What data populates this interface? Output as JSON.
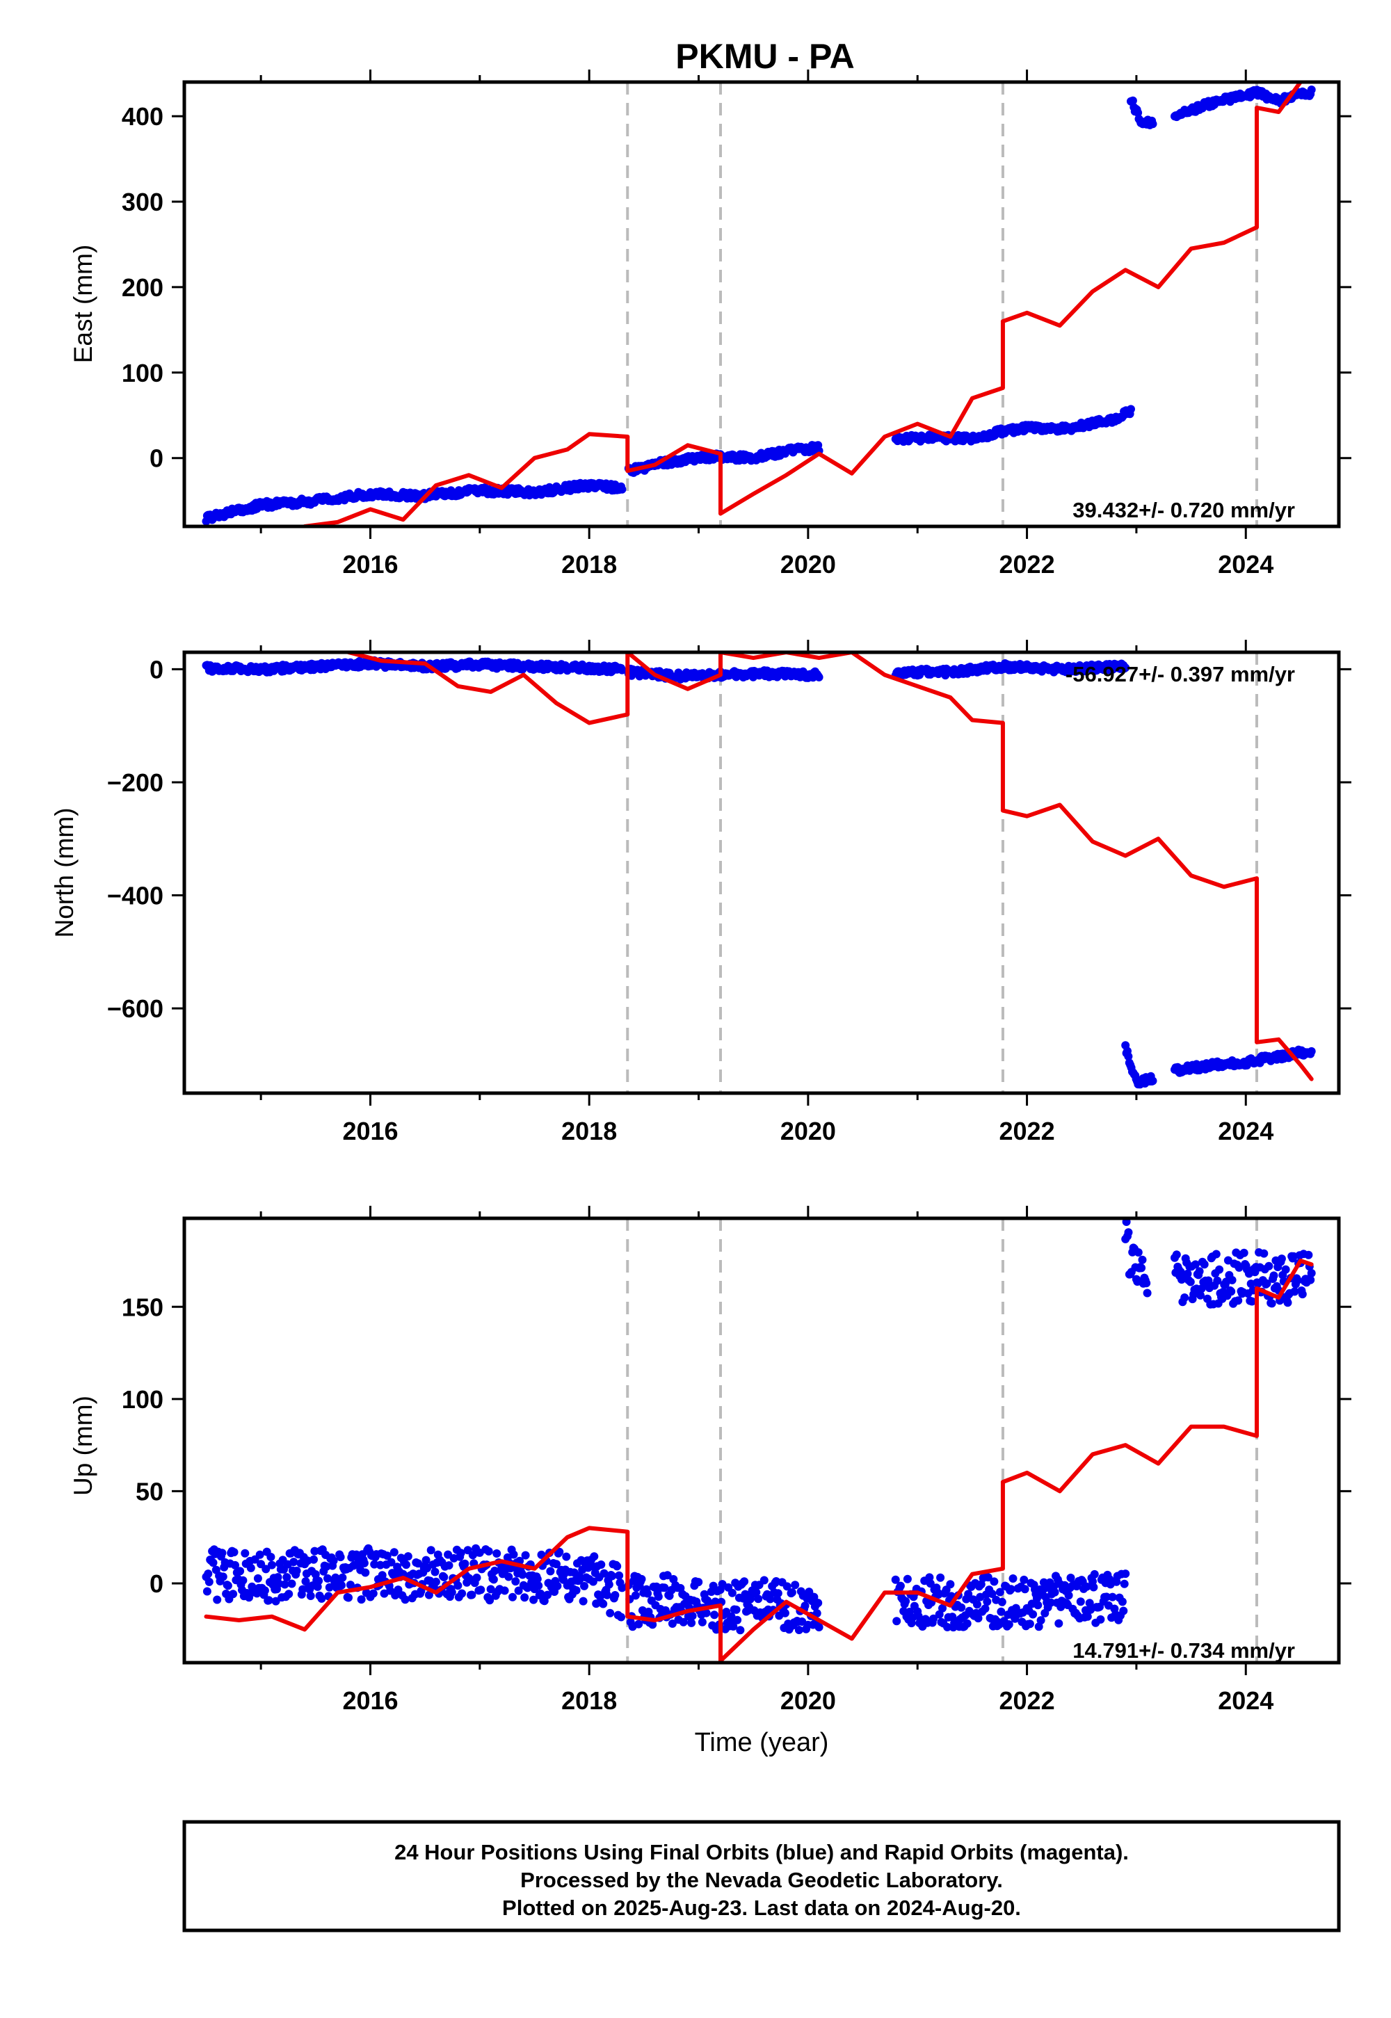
{
  "title": "PKMU - PA",
  "xlabel": "Time (year)",
  "footer": [
    "24 Hour Positions Using Final Orbits (blue) and Rapid Orbits (magenta).",
    "Processed by the Nevada Geodetic Laboratory.",
    "Plotted on 2025-Aug-23. Last data on 2024-Aug-20."
  ],
  "colors": {
    "data": "#0000ee",
    "model": "#ee0000",
    "steps": "#bbbbbb",
    "axes": "#000000"
  },
  "chart_data": [
    {
      "type": "scatter",
      "component": "East",
      "ylabel": "East (mm)",
      "xlim": [
        2014.3,
        2024.85
      ],
      "ylim": [
        -80,
        440
      ],
      "xticks": [
        2016,
        2018,
        2020,
        2022,
        2024
      ],
      "yticks": [
        0,
        100,
        200,
        300,
        400
      ],
      "rate_text": "39.432+/- 0.720 mm/yr",
      "steps": [
        2018.35,
        2019.2,
        2021.78,
        2024.1
      ],
      "data_segments": [
        {
          "x": [
            2014.5,
            2015.0,
            2015.5,
            2016.0,
            2016.5,
            2017.0,
            2017.5,
            2018.0,
            2018.3
          ],
          "y": [
            -70,
            -55,
            -50,
            -42,
            -44,
            -38,
            -40,
            -32,
            -35
          ]
        },
        {
          "x": [
            2018.36,
            2018.7,
            2019.0,
            2019.2,
            2019.5,
            2019.8,
            2020.1
          ],
          "y": [
            -15,
            -5,
            0,
            2,
            0,
            8,
            12
          ]
        },
        {
          "x": [
            2020.8,
            2021.2,
            2021.5,
            2021.78,
            2022.0,
            2022.4,
            2022.8,
            2022.95
          ],
          "y": [
            22,
            24,
            22,
            32,
            35,
            35,
            45,
            55
          ]
        },
        {
          "x": [
            2022.95,
            2023.05,
            2023.15
          ],
          "y": [
            420,
            390,
            395
          ]
        },
        {
          "x": [
            2023.35,
            2023.6,
            2023.9,
            2024.1,
            2024.3,
            2024.6
          ],
          "y": [
            400,
            412,
            422,
            428,
            418,
            428
          ]
        }
      ],
      "model_segments": [
        {
          "x": [
            2015.4,
            2015.7,
            2016.0,
            2016.3,
            2016.6,
            2016.9,
            2017.2,
            2017.5,
            2017.8,
            2018.0,
            2018.35
          ],
          "y": [
            -80,
            -75,
            -60,
            -72,
            -32,
            -20,
            -35,
            0,
            10,
            28,
            25
          ]
        },
        {
          "x": [
            2018.35,
            2018.6,
            2018.9,
            2019.2
          ],
          "y": [
            -15,
            -8,
            15,
            5
          ]
        },
        {
          "x": [
            2019.2,
            2019.5,
            2019.8,
            2020.1,
            2020.4,
            2020.7,
            2021.0,
            2021.3,
            2021.5,
            2021.78
          ],
          "y": [
            -65,
            -42,
            -20,
            5,
            -18,
            25,
            40,
            25,
            70,
            82
          ]
        },
        {
          "x": [
            2021.78,
            2022.0,
            2022.3,
            2022.6,
            2022.9,
            2023.2,
            2023.5,
            2023.8,
            2024.1
          ],
          "y": [
            160,
            170,
            155,
            195,
            220,
            200,
            245,
            252,
            270
          ]
        },
        {
          "x": [
            2024.1,
            2024.3,
            2024.5
          ],
          "y": [
            410,
            405,
            440
          ]
        }
      ]
    },
    {
      "type": "scatter",
      "component": "North",
      "ylabel": "North (mm)",
      "xlim": [
        2014.3,
        2024.85
      ],
      "ylim": [
        -750,
        30
      ],
      "xticks": [
        2016,
        2018,
        2020,
        2022,
        2024
      ],
      "yticks": [
        0,
        -200,
        -400,
        -600
      ],
      "rate_text": "-56.927+/- 0.397 mm/yr",
      "steps": [
        2018.35,
        2019.2,
        2021.78,
        2024.1
      ],
      "data_segments": [
        {
          "x": [
            2014.5,
            2015.0,
            2015.5,
            2016.0,
            2016.5,
            2017.0,
            2017.5,
            2018.0,
            2018.3
          ],
          "y": [
            2,
            0,
            5,
            10,
            5,
            8,
            5,
            2,
            0
          ]
        },
        {
          "x": [
            2018.36,
            2018.8,
            2019.2,
            2019.6,
            2020.1
          ],
          "y": [
            -5,
            -12,
            -10,
            -8,
            -10
          ]
        },
        {
          "x": [
            2020.8,
            2021.3,
            2021.78,
            2022.3,
            2022.9
          ],
          "y": [
            -5,
            -5,
            5,
            0,
            5
          ]
        },
        {
          "x": [
            2022.9,
            2023.0,
            2023.15
          ],
          "y": [
            -670,
            -730,
            -725
          ]
        },
        {
          "x": [
            2023.35,
            2023.7,
            2024.0,
            2024.3,
            2024.6
          ],
          "y": [
            -710,
            -700,
            -695,
            -685,
            -675
          ]
        }
      ],
      "model_segments": [
        {
          "x": [
            2015.8,
            2016.1,
            2016.5,
            2016.8,
            2017.1,
            2017.4,
            2017.7,
            2018.0,
            2018.35
          ],
          "y": [
            30,
            15,
            10,
            -30,
            -40,
            -10,
            -60,
            -95,
            -80
          ]
        },
        {
          "x": [
            2018.35,
            2018.6,
            2018.9,
            2019.2
          ],
          "y": [
            30,
            -10,
            -35,
            -10
          ]
        },
        {
          "x": [
            2019.2,
            2019.5,
            2019.8,
            2020.1,
            2020.4,
            2020.7,
            2021.0,
            2021.3,
            2021.5,
            2021.78
          ],
          "y": [
            30,
            20,
            30,
            20,
            30,
            -10,
            -30,
            -50,
            -90,
            -95
          ]
        },
        {
          "x": [
            2021.78,
            2022.0,
            2022.3,
            2022.6,
            2022.9,
            2023.2,
            2023.5,
            2023.8,
            2024.1
          ],
          "y": [
            -250,
            -260,
            -240,
            -305,
            -330,
            -300,
            -365,
            -385,
            -370
          ]
        },
        {
          "x": [
            2024.1,
            2024.3,
            2024.5,
            2024.6
          ],
          "y": [
            -660,
            -655,
            -700,
            -725
          ]
        }
      ]
    },
    {
      "type": "scatter",
      "component": "Up",
      "ylabel": "Up (mm)",
      "xlim": [
        2014.3,
        2024.85
      ],
      "ylim": [
        -43,
        198
      ],
      "xticks": [
        2016,
        2018,
        2020,
        2022,
        2024
      ],
      "yticks": [
        0,
        50,
        100,
        150
      ],
      "rate_text": "14.791+/- 0.734 mm/yr",
      "steps": [
        2018.35,
        2019.2,
        2021.78,
        2024.1
      ],
      "data_segments": [
        {
          "x": [
            2014.5,
            2015.0,
            2015.5,
            2016.0,
            2016.5,
            2017.0,
            2017.5,
            2018.0,
            2018.3
          ],
          "y": [
            5,
            3,
            5,
            5,
            4,
            5,
            4,
            2,
            -5
          ]
        },
        {
          "x": [
            2018.36,
            2018.8,
            2019.2,
            2019.6,
            2020.1
          ],
          "y": [
            -10,
            -8,
            -12,
            -12,
            -12
          ]
        },
        {
          "x": [
            2020.8,
            2021.3,
            2021.78,
            2022.3,
            2022.9
          ],
          "y": [
            -10,
            -10,
            -10,
            -10,
            -8
          ]
        },
        {
          "x": [
            2022.9,
            2022.95,
            2023.1
          ],
          "y": [
            185,
            175,
            170
          ]
        },
        {
          "x": [
            2023.35,
            2023.7,
            2024.0,
            2024.3,
            2024.6
          ],
          "y": [
            167,
            165,
            166,
            165,
            168
          ]
        }
      ],
      "model_segments": [
        {
          "x": [
            2014.5,
            2014.8,
            2015.1,
            2015.4,
            2015.7,
            2016.0,
            2016.3,
            2016.6,
            2016.9,
            2017.2,
            2017.5,
            2017.8,
            2018.0,
            2018.35
          ],
          "y": [
            -18,
            -20,
            -18,
            -25,
            -5,
            -2,
            3,
            -5,
            8,
            12,
            8,
            25,
            30,
            28
          ]
        },
        {
          "x": [
            2018.35,
            2018.6,
            2018.9,
            2019.2
          ],
          "y": [
            -18,
            -20,
            -15,
            -12
          ]
        },
        {
          "x": [
            2019.2,
            2019.5,
            2019.8,
            2020.1,
            2020.4,
            2020.7,
            2021.0,
            2021.3,
            2021.5,
            2021.78
          ],
          "y": [
            -42,
            -25,
            -10,
            -20,
            -30,
            -5,
            -5,
            -12,
            5,
            8
          ]
        },
        {
          "x": [
            2021.78,
            2022.0,
            2022.3,
            2022.6,
            2022.9,
            2023.2,
            2023.5,
            2023.8,
            2024.1
          ],
          "y": [
            55,
            60,
            50,
            70,
            75,
            65,
            85,
            85,
            80
          ]
        },
        {
          "x": [
            2024.1,
            2024.3,
            2024.5,
            2024.6
          ],
          "y": [
            160,
            155,
            175,
            173
          ]
        }
      ]
    }
  ]
}
